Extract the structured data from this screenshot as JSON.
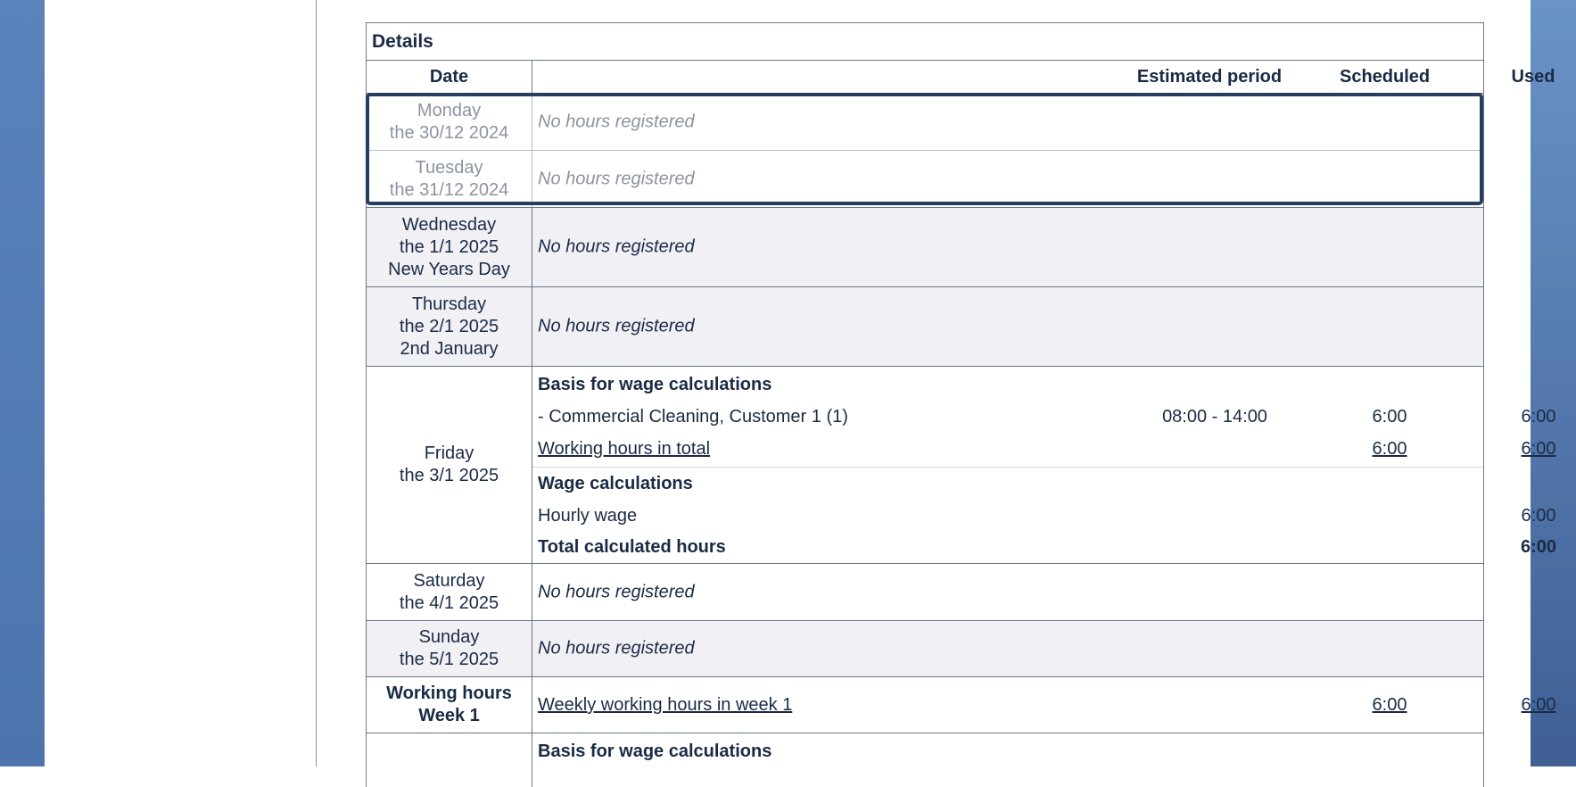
{
  "details": {
    "title": "Details",
    "headers": {
      "date": "Date",
      "estimated": "Estimated period",
      "scheduled": "Scheduled",
      "used": "Used"
    },
    "no_hours": "No hours registered",
    "days": [
      {
        "day": "Monday",
        "date": "the 30/12 2024"
      },
      {
        "day": "Tuesday",
        "date": "the 31/12 2024"
      },
      {
        "day": "Wednesday",
        "date": "the 1/1 2025",
        "holiday": "New Years Day"
      },
      {
        "day": "Thursday",
        "date": "the 2/1 2025",
        "holiday": "2nd January"
      },
      {
        "day": "Friday",
        "date": "the 3/1 2025"
      },
      {
        "day": "Saturday",
        "date": "the 4/1 2025"
      },
      {
        "day": "Sunday",
        "date": "the 5/1 2025"
      }
    ],
    "friday": {
      "basis_title": "Basis for wage calculations",
      "item": {
        "label": "-  Commercial Cleaning, Customer 1 (1)",
        "period": "08:00 - 14:00",
        "scheduled": "6:00",
        "used": "6:00"
      },
      "total": {
        "label": "Working hours in total",
        "scheduled": "6:00",
        "used": "6:00"
      },
      "wage_title": "Wage calculations",
      "hourly": {
        "label": "Hourly wage",
        "used": "6:00"
      },
      "calc_total": {
        "label": "Total calculated hours",
        "used": "6:00"
      }
    },
    "week": {
      "label1": "Working hours",
      "label2": "Week 1",
      "link": "Weekly working hours in week 1",
      "scheduled": "6:00",
      "used": "6:00"
    },
    "next": {
      "basis_title": "Basis for wage calculations"
    }
  }
}
